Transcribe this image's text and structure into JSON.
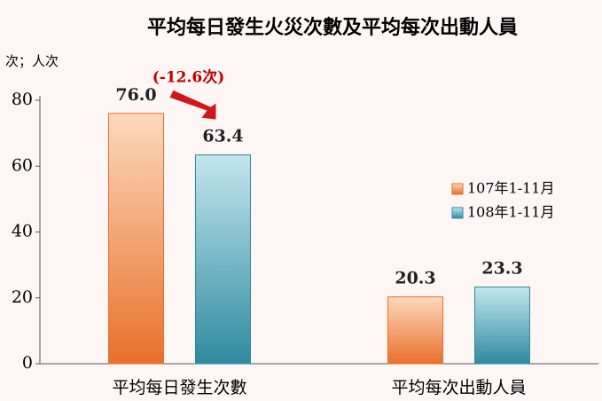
{
  "chart_data": {
    "type": "bar",
    "title": "平均每日發生火災次數及平均每次出動人員",
    "y_unit": "次；人次",
    "categories": [
      "平均每日發生次數",
      "平均每次出動人員"
    ],
    "series": [
      {
        "name": "107年1-11月",
        "color": "#e8702a",
        "values": [
          76.0,
          20.3
        ],
        "value_labels": [
          "76.0",
          "20.3"
        ]
      },
      {
        "name": "108年1-11月",
        "color": "#2e8aa0",
        "values": [
          63.4,
          23.3
        ],
        "value_labels": [
          "63.4",
          "23.3"
        ]
      }
    ],
    "annotation": "(-12.6次)",
    "ylim": [
      0,
      80
    ],
    "yticks": [
      0,
      20,
      40,
      60,
      80
    ],
    "legend": "right"
  }
}
